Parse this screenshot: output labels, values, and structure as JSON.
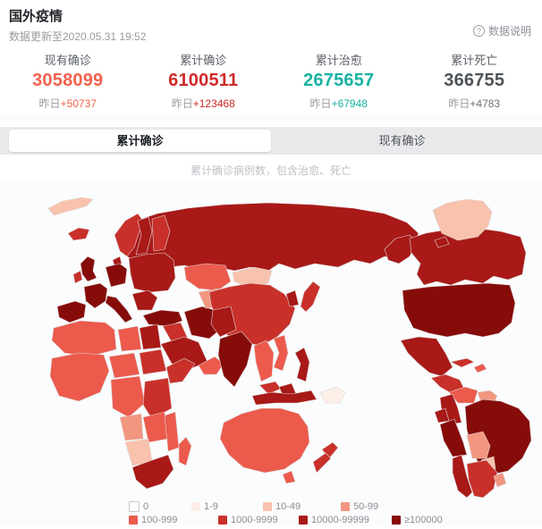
{
  "header": {
    "title": "国外疫情",
    "updated": "数据更新至2020.05.31 19:52",
    "help_icon": "?",
    "help_label": "数据说明"
  },
  "stats": {
    "items": [
      {
        "label": "现有确诊",
        "value": "3058099",
        "delta_prefix": "昨日",
        "delta": "+50737",
        "color": "#f2614d",
        "delta_color": "#f2614d"
      },
      {
        "label": "累计确诊",
        "value": "6100511",
        "delta_prefix": "昨日",
        "delta": "+123468",
        "color": "#d02a2a",
        "delta_color": "#d02a2a"
      },
      {
        "label": "累计治愈",
        "value": "2675657",
        "delta_prefix": "昨日",
        "delta": "+67948",
        "color": "#17b3a3",
        "delta_color": "#17b3a3"
      },
      {
        "label": "累计死亡",
        "value": "366755",
        "delta_prefix": "昨日",
        "delta": "+4783",
        "color": "#4e5357",
        "delta_color": "#707277"
      }
    ]
  },
  "tabs": {
    "active": "累计确诊",
    "inactive": "现有确诊"
  },
  "map": {
    "subtitle": "累计确诊病例数，包含治愈、死亡",
    "regions": [
      {
        "id": "svalbard",
        "level": 2
      },
      {
        "id": "iceland",
        "level": 5
      },
      {
        "id": "norway",
        "level": 5
      },
      {
        "id": "sweden",
        "level": 6
      },
      {
        "id": "finland",
        "level": 5
      },
      {
        "id": "denmark",
        "level": 6
      },
      {
        "id": "uk",
        "level": 7
      },
      {
        "id": "ireland",
        "level": 5
      },
      {
        "id": "france",
        "level": 7
      },
      {
        "id": "iberia",
        "level": 7
      },
      {
        "id": "germany",
        "level": 7
      },
      {
        "id": "italy",
        "level": 7
      },
      {
        "id": "east-europe",
        "level": 6
      },
      {
        "id": "balkans",
        "level": 6
      },
      {
        "id": "turkey",
        "level": 7
      },
      {
        "id": "syria-iraq",
        "level": 5
      },
      {
        "id": "iran",
        "level": 7
      },
      {
        "id": "saudi",
        "level": 6
      },
      {
        "id": "yemen-oman",
        "level": 4
      },
      {
        "id": "egypt",
        "level": 6
      },
      {
        "id": "libya",
        "level": 4
      },
      {
        "id": "maghreb",
        "level": 4
      },
      {
        "id": "west-africa",
        "level": 4
      },
      {
        "id": "chad",
        "level": 4
      },
      {
        "id": "sudan",
        "level": 5
      },
      {
        "id": "horn",
        "level": 5
      },
      {
        "id": "central-africa",
        "level": 4
      },
      {
        "id": "east-africa",
        "level": 5
      },
      {
        "id": "angola",
        "level": 3
      },
      {
        "id": "zambia",
        "level": 4
      },
      {
        "id": "namibia",
        "level": 2
      },
      {
        "id": "mozambique",
        "level": 4
      },
      {
        "id": "south-africa",
        "level": 6
      },
      {
        "id": "madagascar",
        "level": 4
      },
      {
        "id": "russia",
        "level": 6
      },
      {
        "id": "kazakhstan",
        "level": 4
      },
      {
        "id": "central-asia",
        "level": 3
      },
      {
        "id": "mongolia",
        "level": 2
      },
      {
        "id": "china",
        "level": 5
      },
      {
        "id": "korea",
        "level": 6
      },
      {
        "id": "japan",
        "level": 5
      },
      {
        "id": "pak-afghan",
        "level": 6
      },
      {
        "id": "india",
        "level": 7
      },
      {
        "id": "myanmar-thai",
        "level": 4
      },
      {
        "id": "vietnam",
        "level": 4
      },
      {
        "id": "philippines",
        "level": 6
      },
      {
        "id": "malaysia",
        "level": 5
      },
      {
        "id": "indonesia",
        "level": 6
      },
      {
        "id": "borneo",
        "level": 6
      },
      {
        "id": "png",
        "level": 1
      },
      {
        "id": "australia",
        "level": 4
      },
      {
        "id": "tasmania",
        "level": 4
      },
      {
        "id": "nz-north",
        "level": 5
      },
      {
        "id": "nz-south",
        "level": 5
      },
      {
        "id": "alaska",
        "level": 6
      },
      {
        "id": "canada",
        "level": 6
      },
      {
        "id": "arctic-a",
        "level": 6
      },
      {
        "id": "arctic-b",
        "level": 6
      },
      {
        "id": "arctic-c",
        "level": 6
      },
      {
        "id": "greenland",
        "level": 2
      },
      {
        "id": "usa",
        "level": 7
      },
      {
        "id": "mexico",
        "level": 6
      },
      {
        "id": "central-america",
        "level": 5
      },
      {
        "id": "cuba",
        "level": 5
      },
      {
        "id": "hispaniola",
        "level": 4
      },
      {
        "id": "venezuela",
        "level": 4
      },
      {
        "id": "colombia",
        "level": 6
      },
      {
        "id": "guyanas",
        "level": 3
      },
      {
        "id": "brazil",
        "level": 7
      },
      {
        "id": "ecuador",
        "level": 6
      },
      {
        "id": "peru",
        "level": 7
      },
      {
        "id": "bolivia",
        "level": 3
      },
      {
        "id": "paraguay",
        "level": 2
      },
      {
        "id": "chile",
        "level": 6
      },
      {
        "id": "argentina",
        "level": 5
      },
      {
        "id": "uruguay",
        "level": 3
      }
    ]
  },
  "legend": {
    "colors": [
      "#ffffff",
      "#fdeee8",
      "#f8c2ac",
      "#f29680",
      "#ec5a4c",
      "#c9302a",
      "#a81917",
      "#860c0a"
    ],
    "swatch_border": "#c7cad0",
    "rows": [
      [
        {
          "label": "0",
          "level": 0
        },
        {
          "label": "1-9",
          "level": 1
        },
        {
          "label": "10-49",
          "level": 2
        },
        {
          "label": "50-99",
          "level": 3
        }
      ],
      [
        {
          "label": "100-999",
          "level": 4
        },
        {
          "label": "1000-9999",
          "level": 5
        },
        {
          "label": "10000-99999",
          "level": 6
        },
        {
          "label": "≥100000",
          "level": 7
        }
      ]
    ]
  }
}
